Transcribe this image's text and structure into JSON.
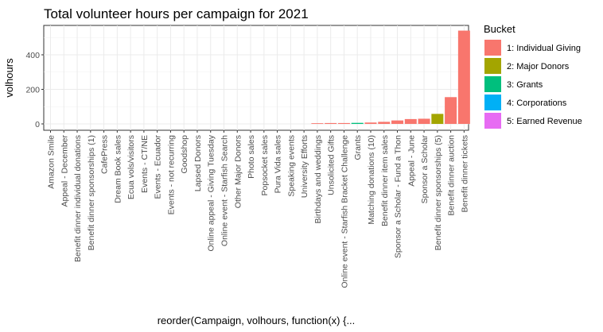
{
  "chart_data": {
    "type": "bar",
    "title": "Total volunteer hours per campaign for 2021",
    "xlabel": "reorder(Campaign, volhours, function(x) {...",
    "ylabel": "volhours",
    "ylim": [
      0,
      550
    ],
    "yticks": [
      0,
      200,
      400
    ],
    "grid": true,
    "legend": {
      "title": "Bucket",
      "placement": "right",
      "entries": [
        {
          "label": "1: Individual Giving",
          "color": "#F8766D"
        },
        {
          "label": "2: Major Donors",
          "color": "#A3A500"
        },
        {
          "label": "3: Grants",
          "color": "#00BF7D"
        },
        {
          "label": "4: Corporations",
          "color": "#00B0F6"
        },
        {
          "label": "5: Earned Revenue",
          "color": "#E76BF3"
        }
      ]
    },
    "categories": [
      "Amazon Smile",
      "Appeal - December",
      "Benefit dinner individual donations",
      "Benefit dinner sponsorships (1)",
      "CafePress",
      "Dream Book sales",
      "Ecua vols/visitors",
      "Events - CT/NE",
      "Events - Ecuador",
      "Events - not recurring",
      "Goodshop",
      "Lapsed Donors",
      "Online appeal - Giving Tuesday",
      "Online event - Starfish Search",
      "Other Major Donors",
      "Photo sales",
      "Popsocket sales",
      "Pura Vida sales",
      "Speaking events",
      "University Efforts",
      "Birthdays and weddings",
      "Unsolicited Gifts",
      "Online event - Starfish Bracket Challenge",
      "Grants",
      "Matching donations (10)",
      "Benefit dinner item sales",
      "Sponsor a Scholar - Fund a Thon",
      "Appeal - June",
      "Sponsor a Scholar",
      "Benefit dinner sponsorships (5)",
      "Benefit dinner auction",
      "Benefit dinner tickets"
    ],
    "values": [
      0,
      0,
      0,
      0,
      0,
      0,
      0,
      0,
      0,
      0,
      0,
      0,
      0,
      0,
      0,
      0,
      0,
      0,
      0,
      0,
      4,
      5,
      5,
      6,
      8,
      12,
      20,
      28,
      30,
      58,
      155,
      540
    ],
    "buckets": [
      1,
      1,
      1,
      1,
      1,
      1,
      1,
      1,
      1,
      1,
      1,
      1,
      1,
      1,
      1,
      1,
      1,
      1,
      1,
      1,
      1,
      1,
      1,
      3,
      1,
      1,
      1,
      1,
      1,
      2,
      1,
      1
    ]
  }
}
